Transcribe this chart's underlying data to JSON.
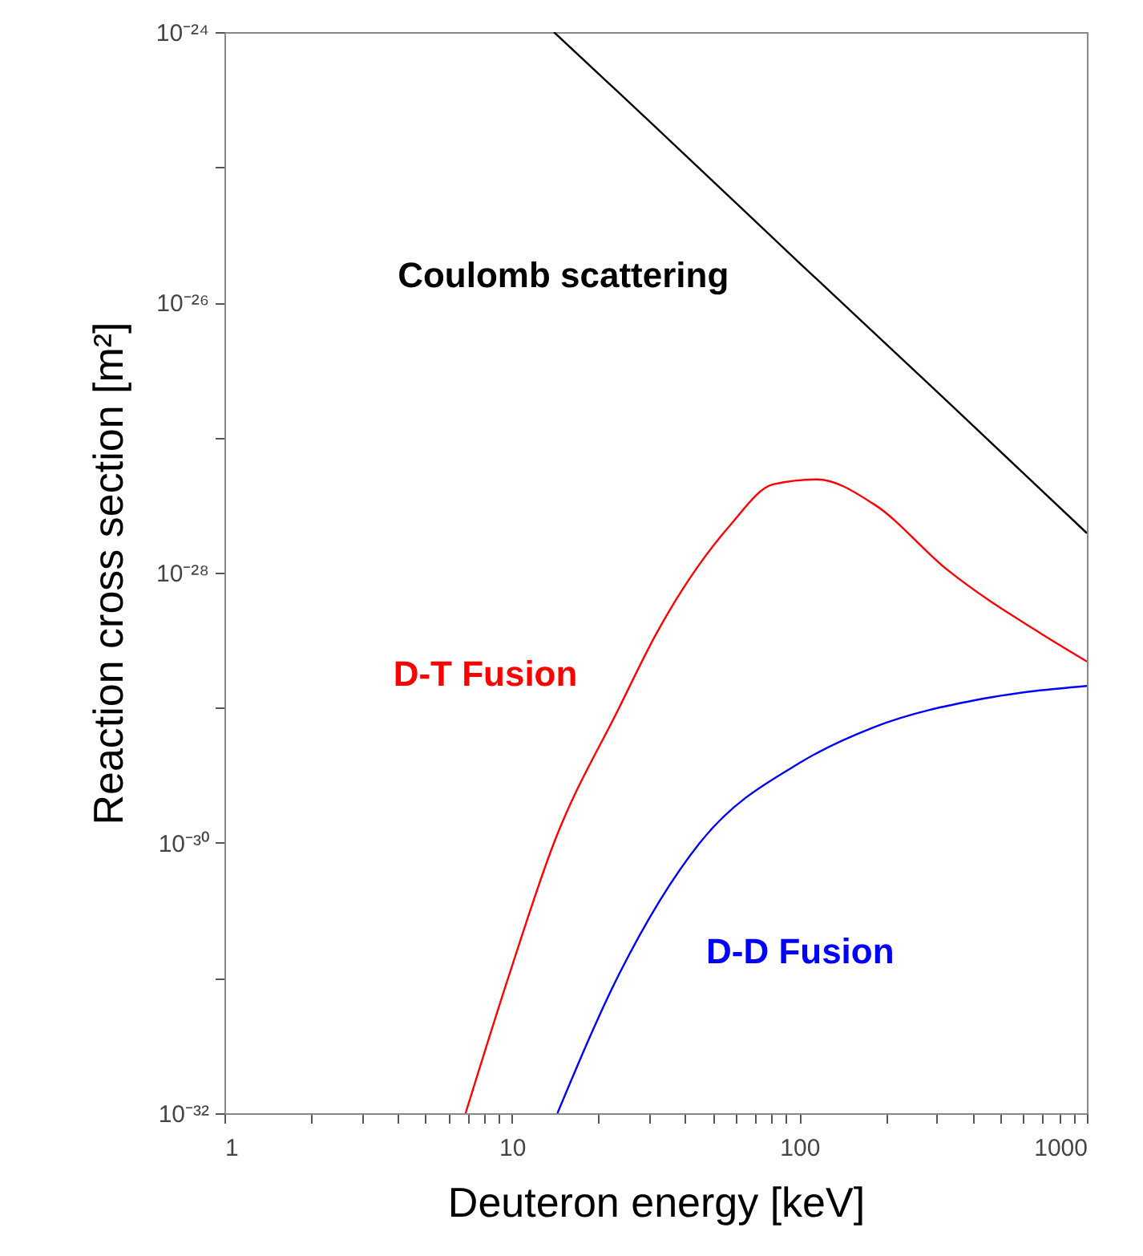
{
  "chart_data": {
    "type": "line",
    "xlabel": "Deuteron energy [keV]",
    "ylabel": "Reaction cross section [m²]",
    "log": "xy",
    "xlim": [
      1,
      1000
    ],
    "ylim": [
      1e-32,
      1e-24
    ],
    "xticks": [
      1,
      {
        "value": 2,
        "label": null
      },
      {
        "value": 3,
        "label": null
      },
      {
        "value": 4,
        "label": null
      },
      {
        "value": 5,
        "label": null
      },
      {
        "value": 6,
        "label": null
      },
      {
        "value": 7,
        "label": null
      },
      {
        "value": 8,
        "label": null
      },
      {
        "value": 9,
        "label": null
      },
      10,
      {
        "value": 20,
        "label": null
      },
      {
        "value": 30,
        "label": null
      },
      {
        "value": 40,
        "label": null
      },
      {
        "value": 50,
        "label": null
      },
      {
        "value": 60,
        "label": null
      },
      {
        "value": 70,
        "label": null
      },
      {
        "value": 80,
        "label": null
      },
      {
        "value": 90,
        "label": null
      },
      100,
      {
        "value": 200,
        "label": null
      },
      {
        "value": 300,
        "label": null
      },
      {
        "value": 400,
        "label": null
      },
      {
        "value": 500,
        "label": null
      },
      {
        "value": 600,
        "label": null
      },
      {
        "value": 700,
        "label": null
      },
      {
        "value": 800,
        "label": null
      },
      {
        "value": 900,
        "label": null
      },
      1000
    ],
    "yticks": [
      {
        "value": 1e-32,
        "label": "10⁻³²"
      },
      {
        "value": 1e-31,
        "label": null
      },
      {
        "value": 1e-30,
        "label": "10⁻³⁰"
      },
      {
        "value": 1e-29,
        "label": null
      },
      {
        "value": 1e-28,
        "label": "10⁻²⁸"
      },
      {
        "value": 1e-27,
        "label": null
      },
      {
        "value": 1e-26,
        "label": "10⁻²⁶"
      },
      {
        "value": 1e-25,
        "label": null
      },
      {
        "value": 1e-24,
        "label": "10⁻²⁴"
      }
    ],
    "series": [
      {
        "name": "Coulomb scattering",
        "color": "#000000",
        "x": [
          14,
          30,
          100,
          300,
          1000
        ],
        "values": [
          1e-24,
          2.2e-25,
          1.96e-26,
          2.2e-27,
          1.96e-28
        ]
      },
      {
        "name": "D-T Fusion",
        "color": "#ff0000",
        "x": [
          6.9,
          9.8,
          14,
          23.6,
          31.7,
          57,
          81,
          115,
          182,
          327,
          698,
          1000
        ],
        "values": [
          1e-32,
          1.07e-31,
          1e-30,
          1e-29,
          3.5e-29,
          2.2e-28,
          4.5e-28,
          4.9e-28,
          3.2e-28,
          1.05e-28,
          3.5e-29,
          2.2e-29
        ]
      },
      {
        "name": "D-D Fusion",
        "color": "#0000ff",
        "x": [
          14.4,
          23.6,
          45,
          102,
          182,
          437,
          1000
        ],
        "values": [
          1e-32,
          1.07e-31,
          1e-30,
          4e-30,
          7.2e-30,
          1.17e-29,
          1.45e-29
        ]
      }
    ]
  }
}
